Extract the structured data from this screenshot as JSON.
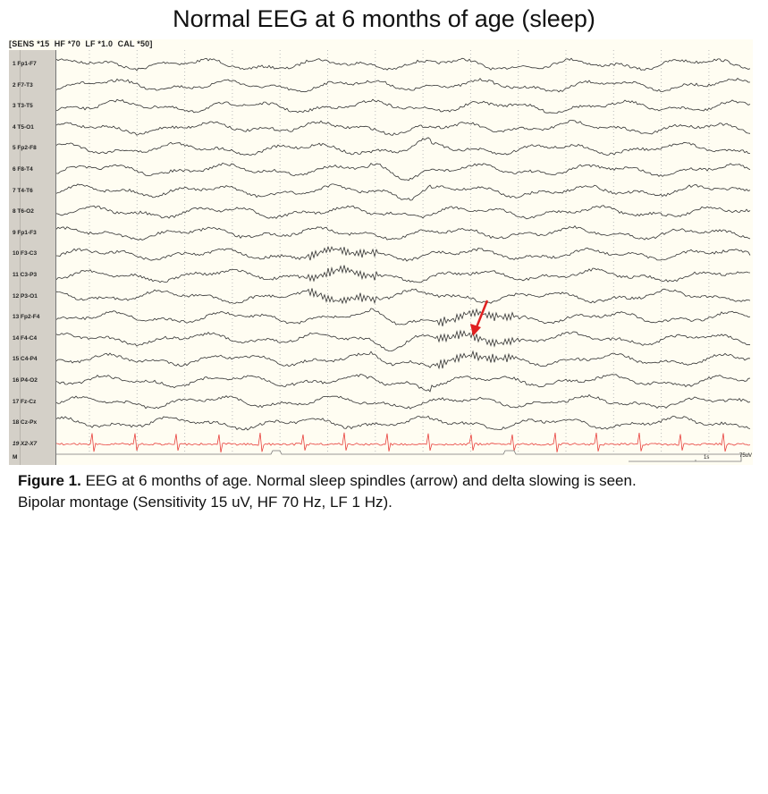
{
  "title": "Normal EEG at 6 months of age (sleep)",
  "settings": "[SENS *15  HF *70  LF *1.0  CAL *50]",
  "channels": [
    "1 Fp1-F7",
    "2 F7-T3",
    "3 T3-T5",
    "4 T5-O1",
    "5 Fp2-F8",
    "6 F8-T4",
    "7 T4-T6",
    "8 T6-O2",
    "9 Fp1-F3",
    "10 F3-C3",
    "11 C3-P3",
    "12 P3-O1",
    "13 Fp2-F4",
    "14 F4-C4",
    "15 C4-P4",
    "16 P4-O2",
    "17 Fz-Cz",
    "18 Cz-Px",
    "19 X2-X7"
  ],
  "marker_label": "M",
  "scale": {
    "time": "1s",
    "amplitude": "75uV"
  },
  "colors": {
    "trace": "#333333",
    "ecg": "#e8403c",
    "arrow": "#e02020",
    "background": "#fffdf2",
    "label_panel": "#d4d0c8"
  },
  "caption": {
    "figure": "Figure 1.",
    "text": " EEG at 6 months of age. Normal sleep spindles (arrow) and delta slowing is seen.",
    "line2": "Bipolar montage (Sensitivity 15 uV, HF 70 Hz, LF 1 Hz)."
  }
}
